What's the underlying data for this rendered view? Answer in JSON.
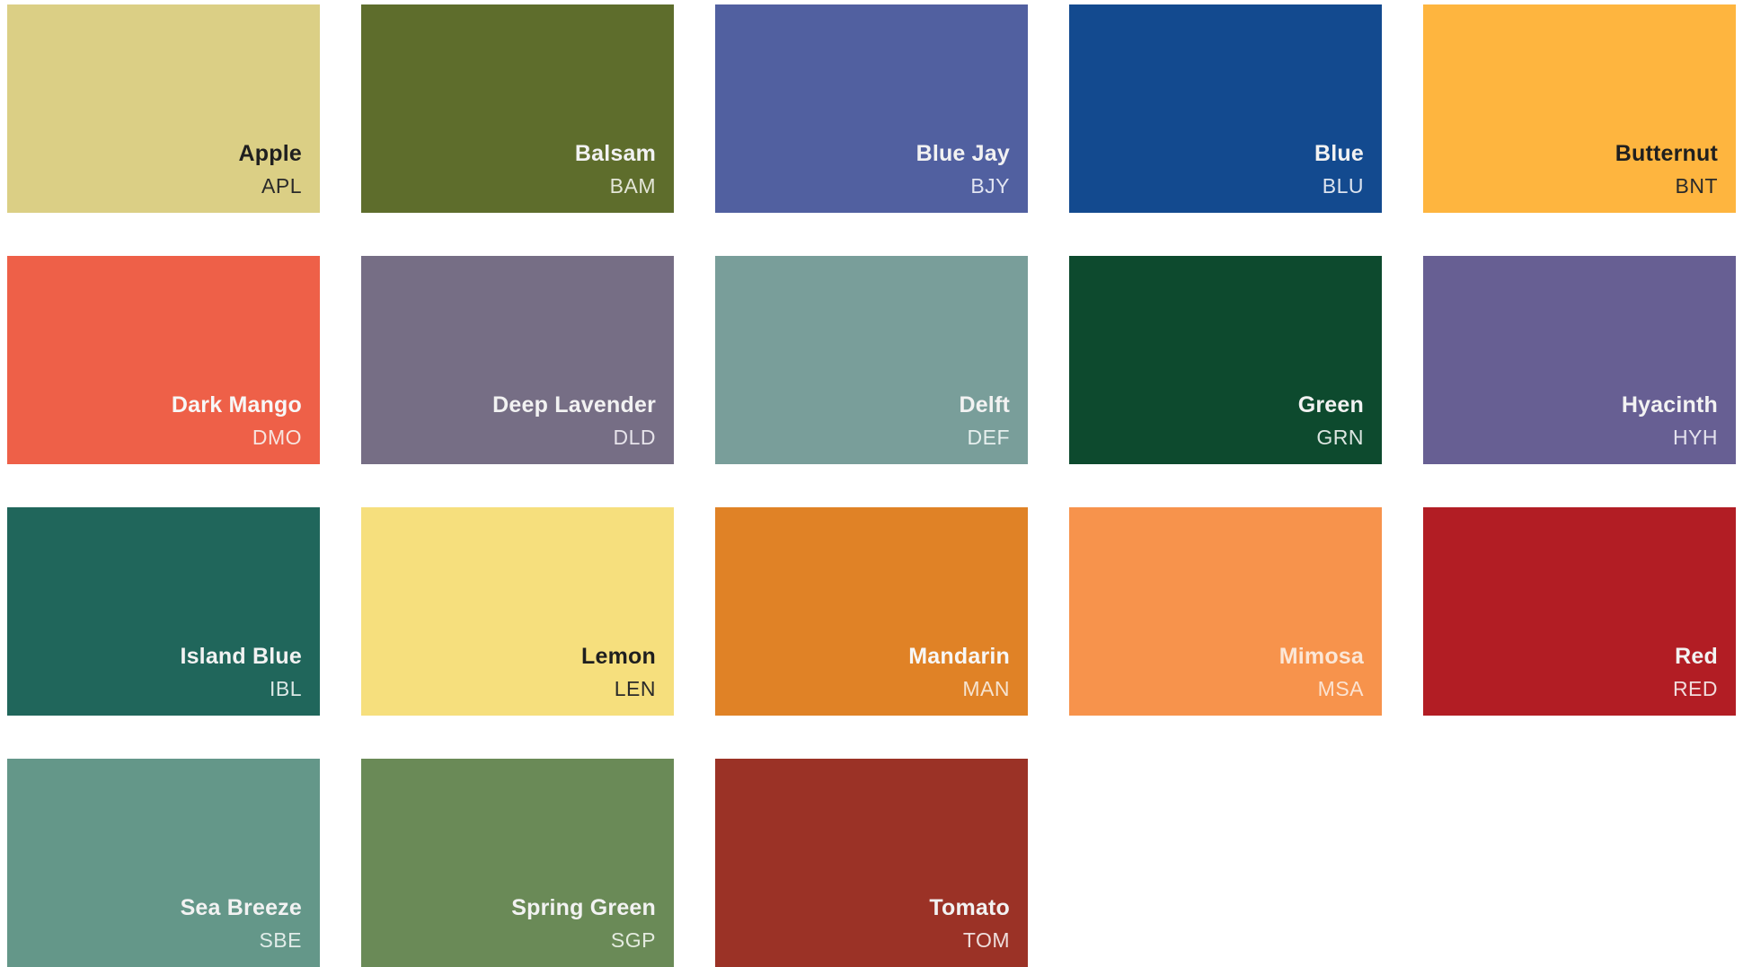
{
  "swatches": [
    {
      "name": "Apple",
      "code": "APL",
      "color": "#DBCF85",
      "text_color": "#1f1f1f",
      "code_color": "#2a2a2a"
    },
    {
      "name": "Balsam",
      "code": "BAM",
      "color": "#5E6D2C",
      "text_color": "#f2f2f2",
      "code_color": "#e4e6d8"
    },
    {
      "name": "Blue Jay",
      "code": "BJY",
      "color": "#5160A0",
      "text_color": "#f2f2f2",
      "code_color": "#e2e5f2"
    },
    {
      "name": "Blue",
      "code": "BLU",
      "color": "#134A8F",
      "text_color": "#f2f2f2",
      "code_color": "#dde4ef"
    },
    {
      "name": "Butternut",
      "code": "BNT",
      "color": "#FEB53F",
      "text_color": "#1f1f1f",
      "code_color": "#2a2a2a"
    },
    {
      "name": "Dark Mango",
      "code": "DMO",
      "color": "#EE6048",
      "text_color": "#f7f7f7",
      "code_color": "#f7e4df"
    },
    {
      "name": "Deep Lavender",
      "code": "DLD",
      "color": "#766E85",
      "text_color": "#f2f2f2",
      "code_color": "#e6e3ea"
    },
    {
      "name": "Delft",
      "code": "DEF",
      "color": "#799E9A",
      "text_color": "#f2f2f2",
      "code_color": "#e6efee"
    },
    {
      "name": "Green",
      "code": "GRN",
      "color": "#0D4A2E",
      "text_color": "#f2f2f2",
      "code_color": "#dce6e1"
    },
    {
      "name": "Hyacinth",
      "code": "HYH",
      "color": "#675F93",
      "text_color": "#f2f2f2",
      "code_color": "#e4e2ee"
    },
    {
      "name": "Island Blue",
      "code": "IBL",
      "color": "#20665B",
      "text_color": "#f2f2f2",
      "code_color": "#dce8e6"
    },
    {
      "name": "Lemon",
      "code": "LEN",
      "color": "#F6DF7D",
      "text_color": "#1f1f1f",
      "code_color": "#2a2a2a"
    },
    {
      "name": "Mandarin",
      "code": "MAN",
      "color": "#E08226",
      "text_color": "#f7f7f7",
      "code_color": "#f6e3cf"
    },
    {
      "name": "Mimosa",
      "code": "MSA",
      "color": "#F7934C",
      "text_color": "#fbe7d7",
      "code_color": "#fbe3d2"
    },
    {
      "name": "Red",
      "code": "RED",
      "color": "#B21D24",
      "text_color": "#f2f2f2",
      "code_color": "#f1dcdc"
    },
    {
      "name": "Sea Breeze",
      "code": "SBE",
      "color": "#649789",
      "text_color": "#f2f2f2",
      "code_color": "#e1ece9"
    },
    {
      "name": "Spring Green",
      "code": "SGP",
      "color": "#6A8A57",
      "text_color": "#f2f2f2",
      "code_color": "#e4ebdf"
    },
    {
      "name": "Tomato",
      "code": "TOM",
      "color": "#9B3226",
      "text_color": "#f2f2f2",
      "code_color": "#efdedc"
    }
  ]
}
